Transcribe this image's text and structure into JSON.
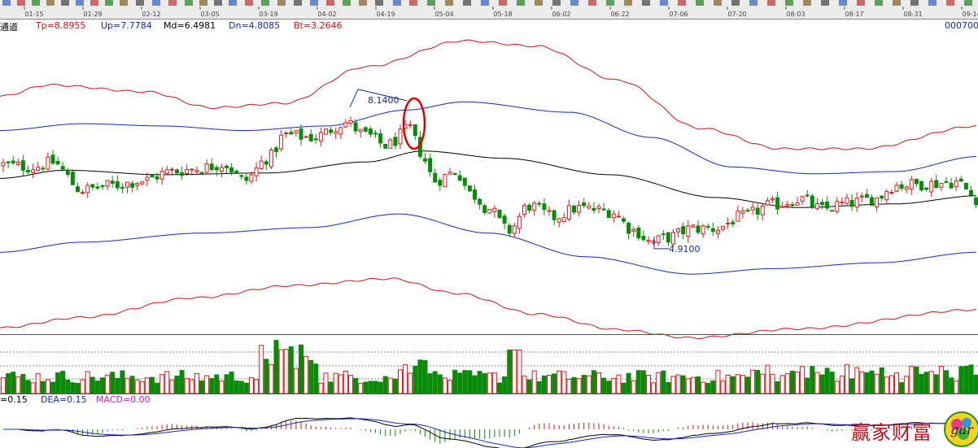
{
  "toolbar": {
    "dates": [
      "01-15",
      "01-29",
      "02-12",
      "03-05",
      "03-19",
      "04-02",
      "04-19",
      "05-04",
      "05-18",
      "06-02",
      "06-22",
      "07-06",
      "07-20",
      "08-03",
      "08-17",
      "08-31",
      "09-14"
    ]
  },
  "indicator_header": {
    "name": "通道",
    "tp": "Tp=8.8955",
    "up": "Up=7.7784",
    "md": "Md=6.4981",
    "dn": "Dn=4.8085",
    "bt": "Bt=3.2646",
    "code": "000700"
  },
  "macd_header": {
    "dif": "=0.15",
    "dea": "DEA=0.15",
    "macd": "MACD=0.00"
  },
  "watermark": {
    "text": "赢家财富",
    "logo_text": "gar"
  },
  "colors": {
    "outer_band": "#c81414",
    "inner_band": "#1428b4",
    "mid_band": "#000000",
    "up_candle": "#e01818",
    "down_candle": "#0a8a0a",
    "annotation": "#1a2a8a",
    "circle": "#e00000",
    "dif_line": "#000000",
    "dea_line": "#1428b4",
    "macd_up": "#e01818",
    "macd_down": "#0a8a0a"
  },
  "chart_data": {
    "type": "candlestick",
    "title": "",
    "x_dates": [
      "01-15",
      "01-29",
      "02-12",
      "03-05",
      "03-19",
      "04-02",
      "04-19",
      "05-04",
      "05-18",
      "06-02",
      "06-22",
      "07-06",
      "07-20",
      "08-03",
      "08-17",
      "08-31",
      "09-14"
    ],
    "price_range": [
      3.0,
      9.6
    ],
    "band_series": [
      {
        "key": "tp",
        "anchors": [
          [
            0,
            8.2
          ],
          [
            60,
            8.45
          ],
          [
            180,
            8.3
          ],
          [
            260,
            7.95
          ],
          [
            350,
            8.05
          ],
          [
            450,
            8.85
          ],
          [
            570,
            9.42
          ],
          [
            660,
            9.3
          ],
          [
            760,
            8.55
          ],
          [
            860,
            7.5
          ],
          [
            960,
            7.05
          ],
          [
            1060,
            7.05
          ],
          [
            1202,
            7.55
          ]
        ]
      },
      {
        "key": "up",
        "anchors": [
          [
            0,
            7.45
          ],
          [
            100,
            7.6
          ],
          [
            200,
            7.55
          ],
          [
            300,
            7.45
          ],
          [
            400,
            7.55
          ],
          [
            500,
            7.9
          ],
          [
            570,
            8.08
          ],
          [
            700,
            7.85
          ],
          [
            800,
            7.3
          ],
          [
            900,
            6.65
          ],
          [
            1000,
            6.5
          ],
          [
            1100,
            6.55
          ],
          [
            1202,
            6.88
          ]
        ]
      },
      {
        "key": "md",
        "anchors": [
          [
            0,
            6.4
          ],
          [
            80,
            6.58
          ],
          [
            200,
            6.48
          ],
          [
            330,
            6.52
          ],
          [
            450,
            6.76
          ],
          [
            520,
            7.0
          ],
          [
            620,
            6.84
          ],
          [
            750,
            6.48
          ],
          [
            880,
            5.98
          ],
          [
            980,
            5.76
          ],
          [
            1100,
            5.84
          ],
          [
            1202,
            6.02
          ]
        ]
      },
      {
        "key": "dn",
        "anchors": [
          [
            0,
            4.78
          ],
          [
            100,
            5.0
          ],
          [
            250,
            5.2
          ],
          [
            380,
            5.32
          ],
          [
            490,
            5.62
          ],
          [
            600,
            5.2
          ],
          [
            720,
            4.68
          ],
          [
            850,
            4.3
          ],
          [
            950,
            4.42
          ],
          [
            1080,
            4.55
          ],
          [
            1202,
            4.78
          ]
        ]
      },
      {
        "key": "bt",
        "anchors": [
          [
            0,
            3.12
          ],
          [
            100,
            3.35
          ],
          [
            240,
            3.78
          ],
          [
            360,
            4.05
          ],
          [
            480,
            4.2
          ],
          [
            560,
            3.88
          ],
          [
            660,
            3.42
          ],
          [
            760,
            3.08
          ],
          [
            850,
            2.9
          ],
          [
            980,
            3.1
          ],
          [
            1202,
            3.52
          ]
        ]
      }
    ],
    "close_path": [
      [
        0,
        6.7
      ],
      [
        40,
        6.65
      ],
      [
        65,
        6.75
      ],
      [
        100,
        6.15
      ],
      [
        140,
        6.25
      ],
      [
        175,
        6.35
      ],
      [
        210,
        6.55
      ],
      [
        245,
        6.62
      ],
      [
        275,
        6.72
      ],
      [
        300,
        6.35
      ],
      [
        330,
        6.85
      ],
      [
        350,
        7.35
      ],
      [
        385,
        7.3
      ],
      [
        425,
        7.62
      ],
      [
        450,
        7.35
      ],
      [
        475,
        7.12
      ],
      [
        505,
        7.5
      ],
      [
        515,
        7.0
      ],
      [
        535,
        6.35
      ],
      [
        560,
        6.55
      ],
      [
        580,
        6.05
      ],
      [
        600,
        5.75
      ],
      [
        625,
        5.25
      ],
      [
        650,
        5.8
      ],
      [
        680,
        5.55
      ],
      [
        710,
        5.75
      ],
      [
        750,
        5.68
      ],
      [
        780,
        5.25
      ],
      [
        800,
        5.0
      ],
      [
        820,
        5.1
      ],
      [
        850,
        5.3
      ],
      [
        880,
        5.3
      ],
      [
        910,
        5.55
      ],
      [
        950,
        5.82
      ],
      [
        985,
        5.95
      ],
      [
        1010,
        5.72
      ],
      [
        1040,
        5.85
      ],
      [
        1075,
        5.95
      ],
      [
        1100,
        6.25
      ],
      [
        1140,
        6.28
      ],
      [
        1175,
        6.32
      ],
      [
        1202,
        5.95
      ]
    ],
    "annotations": [
      {
        "label": "8.1400",
        "price": 8.14,
        "x": 470
      },
      {
        "label": "4.9100",
        "price": 4.91,
        "x": 822
      }
    ],
    "volume_range": [
      0,
      1
    ],
    "macd_range": [
      -0.35,
      0.3
    ]
  }
}
